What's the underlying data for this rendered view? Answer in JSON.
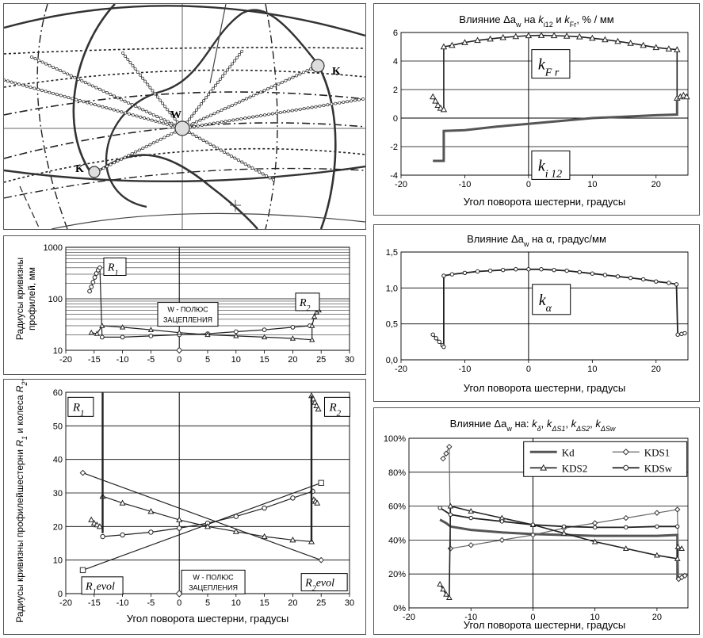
{
  "colors": {
    "line": "#222222",
    "medium": "#555555",
    "marker_fill": "#ffffff",
    "grid": "#000000"
  },
  "diagram": {
    "labels": {
      "pole": "W",
      "contact_left": "K",
      "contact_right": "K"
    }
  },
  "chart_data": [
    {
      "id": "k-fr-ki12",
      "type": "line",
      "title": "Влияние Δa",
      "title_sub": "w",
      "title_rest": " на",
      "title_k1": "k",
      "title_k1_sub": "i12",
      "title_and": "и",
      "title_k2": "k",
      "title_k2_sub": "Fr",
      "title_unit": ",  % / мм",
      "xlabel": "Угол поворота шестерни, градусы",
      "xlim": [
        -20,
        25
      ],
      "ylim": [
        -4,
        6
      ],
      "xticks": [
        -20,
        -10,
        0,
        10,
        20
      ],
      "yticks": [
        -4,
        -2,
        0,
        2,
        4,
        6
      ],
      "boxes": [
        {
          "k": "k",
          "sub": "F r"
        },
        {
          "k": "k",
          "sub": "i 12"
        }
      ],
      "series": [
        {
          "marker": "triangle",
          "points": [
            [
              -15,
              1.5
            ],
            [
              -14.6,
              1.2
            ],
            [
              -14.2,
              0.9
            ],
            [
              -13.8,
              0.7
            ],
            [
              -13.3,
              0.6
            ],
            [
              -13.3,
              5
            ],
            [
              -12,
              5.1
            ],
            [
              -10,
              5.3
            ],
            [
              -8,
              5.45
            ],
            [
              -6,
              5.55
            ],
            [
              -4,
              5.65
            ],
            [
              -2,
              5.72
            ],
            [
              0,
              5.78
            ],
            [
              2,
              5.8
            ],
            [
              4,
              5.78
            ],
            [
              6,
              5.75
            ],
            [
              8,
              5.7
            ],
            [
              10,
              5.6
            ],
            [
              12,
              5.5
            ],
            [
              14,
              5.38
            ],
            [
              16,
              5.25
            ],
            [
              18,
              5.1
            ],
            [
              20,
              4.95
            ],
            [
              22,
              4.85
            ],
            [
              23.3,
              4.8
            ],
            [
              23.3,
              1.4
            ],
            [
              23.8,
              1.5
            ],
            [
              24.3,
              1.6
            ],
            [
              24.8,
              1.5
            ]
          ]
        },
        {
          "marker": "none",
          "points": [
            [
              -15,
              -3
            ],
            [
              -14,
              -3
            ],
            [
              -13.3,
              -3
            ],
            [
              -13.3,
              -0.9
            ],
            [
              -10,
              -0.85
            ],
            [
              -5,
              -0.6
            ],
            [
              0,
              -0.4
            ],
            [
              5,
              -0.2
            ],
            [
              10,
              0
            ],
            [
              15,
              0.1
            ],
            [
              20,
              0.2
            ],
            [
              23.3,
              0.25
            ],
            [
              23.3,
              1.3
            ]
          ]
        }
      ]
    },
    {
      "id": "radii-log",
      "type": "scatter",
      "ylabel_lines": [
        "Радиусы кривизны",
        "профилей, мм"
      ],
      "log_y": true,
      "xlim": [
        -20,
        30
      ],
      "ylim": [
        10,
        1000
      ],
      "xticks": [
        -20,
        -15,
        -10,
        -5,
        0,
        5,
        10,
        15,
        20,
        25,
        30
      ],
      "yticks": [
        10,
        100,
        1000
      ],
      "labels": {
        "r1": "R",
        "r1_sub": "1",
        "r2": "R",
        "r2_sub": "2",
        "pole_line1": "W - ПОЛЮС",
        "pole_line2": "ЗАЦЕПЛЕНИЯ"
      },
      "series": [
        {
          "marker": "circle",
          "points": [
            [
              -15.8,
              140
            ],
            [
              -15.5,
              170
            ],
            [
              -15.2,
              210
            ],
            [
              -14.9,
              260
            ],
            [
              -14.6,
              310
            ],
            [
              -14.3,
              360
            ],
            [
              -14,
              400
            ],
            [
              -13.6,
              18
            ],
            [
              -10,
              18
            ],
            [
              -5,
              19
            ],
            [
              0,
              20
            ],
            [
              5,
              21
            ],
            [
              10,
              23
            ],
            [
              15,
              25
            ],
            [
              20,
              28
            ],
            [
              23,
              30
            ]
          ]
        },
        {
          "marker": "triangle",
          "points": [
            [
              -15.5,
              22
            ],
            [
              -14.5,
              21
            ],
            [
              -13.6,
              30
            ],
            [
              -10,
              28
            ],
            [
              -5,
              25
            ],
            [
              0,
              22
            ],
            [
              5,
              20
            ],
            [
              10,
              19
            ],
            [
              15,
              18
            ],
            [
              20,
              17
            ],
            [
              23.4,
              16
            ],
            [
              23.4,
              30
            ],
            [
              23.8,
              45
            ],
            [
              24.2,
              55
            ],
            [
              24.6,
              60
            ]
          ]
        }
      ],
      "pole_point": [
        0,
        10
      ]
    },
    {
      "id": "radii-linear",
      "type": "scatter",
      "ylabel_line1": "Радиусы кривизны профилей",
      "ylabel_line2_a": "шестерни",
      "ylabel_r1": "R",
      "ylabel_r1_sub": "1",
      "ylabel_mid": "и колеса",
      "ylabel_r2": "R",
      "ylabel_r2_sub": "2",
      "ylabel_end": ", мм",
      "xlabel": "Угол поворота шестерни, градусы",
      "xlim": [
        -20,
        30
      ],
      "ylim": [
        0,
        60
      ],
      "xticks": [
        -20,
        -15,
        -10,
        -5,
        0,
        5,
        10,
        15,
        20,
        25,
        30
      ],
      "yticks": [
        0,
        10,
        20,
        30,
        40,
        50,
        60
      ],
      "labels": {
        "r1": "R",
        "r1_sub": "1",
        "r2": "R",
        "r2_sub": "2",
        "r1evol": "R",
        "r1evol_sub": "1",
        "r1evol_rest": "evol",
        "r2evol": "R",
        "r2evol_sub": "2",
        "r2evol_rest": "evol",
        "pole_line1": "W - ПОЛЮС",
        "pole_line2": "ЗАЦЕПЛЕНИЯ"
      },
      "series": [
        {
          "marker": "diamond",
          "points": [
            [
              -17,
              36
            ],
            [
              25,
              10
            ]
          ]
        },
        {
          "marker": "square",
          "points": [
            [
              -17,
              7
            ],
            [
              25,
              33
            ]
          ]
        },
        {
          "marker": "circle",
          "points": [
            [
              -13.5,
              17
            ],
            [
              -10,
              17.5
            ],
            [
              -5,
              18.3
            ],
            [
              0,
              19.5
            ],
            [
              5,
              21
            ],
            [
              10,
              23
            ],
            [
              15,
              25.5
            ],
            [
              20,
              28.5
            ],
            [
              23.5,
              30.5
            ]
          ]
        },
        {
          "marker": "triangle",
          "points": [
            [
              -13.5,
              29
            ],
            [
              -10,
              27
            ],
            [
              -5,
              24.5
            ],
            [
              0,
              22
            ],
            [
              5,
              20
            ],
            [
              10,
              18.5
            ],
            [
              15,
              17
            ],
            [
              20,
              16
            ],
            [
              23.3,
              15.5
            ]
          ]
        },
        {
          "marker": "triangle",
          "points": [
            [
              -15.5,
              22
            ],
            [
              -15,
              21
            ],
            [
              -14.5,
              20.5
            ],
            [
              -14,
              20
            ]
          ]
        },
        {
          "marker": "triangle",
          "points": [
            [
              23.7,
              28
            ],
            [
              24,
              27.5
            ],
            [
              24.3,
              27
            ]
          ]
        },
        {
          "marker": "triangle",
          "points": [
            [
              23.3,
              59
            ],
            [
              23.6,
              58
            ],
            [
              23.9,
              57
            ],
            [
              24.2,
              56
            ],
            [
              24.5,
              55
            ]
          ]
        },
        {
          "marker": "none",
          "points": [
            [
              -13.5,
              60
            ],
            [
              -13.5,
              18
            ]
          ]
        },
        {
          "marker": "none",
          "points": [
            [
              23.3,
              15.5
            ],
            [
              23.3,
              59
            ]
          ]
        }
      ],
      "pole_point": [
        0,
        0
      ]
    },
    {
      "id": "k-alpha",
      "type": "line",
      "title": "Влияние  Δa",
      "title_sub": "w",
      "title_rest": "  на α, градус/мм",
      "xlabel": "Угол поворота шестерни, градусы",
      "xlim": [
        -20,
        25
      ],
      "ylim": [
        0,
        1.5
      ],
      "xticks": [
        -20,
        -10,
        0,
        10,
        20
      ],
      "yticks": [
        0.0,
        0.5,
        1.0,
        1.5
      ],
      "yticklabels": [
        "0,0",
        "0,5",
        "1,0",
        "1,5"
      ],
      "box": {
        "k": "k",
        "sub": "α"
      },
      "series": [
        {
          "marker": "circle",
          "points": [
            [
              -15,
              0.35
            ],
            [
              -14.5,
              0.3
            ],
            [
              -14,
              0.25
            ],
            [
              -13.5,
              0.2
            ],
            [
              -13.3,
              0.18
            ],
            [
              -13.3,
              1.17
            ],
            [
              -12,
              1.19
            ],
            [
              -10,
              1.21
            ],
            [
              -8,
              1.23
            ],
            [
              -6,
              1.24
            ],
            [
              -4,
              1.25
            ],
            [
              -2,
              1.26
            ],
            [
              0,
              1.26
            ],
            [
              2,
              1.26
            ],
            [
              4,
              1.25
            ],
            [
              6,
              1.24
            ],
            [
              8,
              1.22
            ],
            [
              10,
              1.2
            ],
            [
              12,
              1.18
            ],
            [
              14,
              1.16
            ],
            [
              16,
              1.14
            ],
            [
              18,
              1.12
            ],
            [
              20,
              1.09
            ],
            [
              22,
              1.07
            ],
            [
              23.2,
              1.05
            ],
            [
              23.4,
              0.35
            ],
            [
              24,
              0.36
            ],
            [
              24.5,
              0.37
            ]
          ]
        }
      ]
    },
    {
      "id": "k-share",
      "type": "line",
      "title_a": "Влияние Δa",
      "title_sub": "w",
      "title_b": " на:",
      "title_terms": [
        {
          "k": "k",
          "sub": "δ"
        },
        {
          "k": "k",
          "sub": "ΔS1"
        },
        {
          "k": "k",
          "sub": "ΔS2"
        },
        {
          "k": "k",
          "sub": "ΔSw"
        }
      ],
      "xlabel": "Угол поворота шестерни, градусы",
      "xlim": [
        -20,
        25
      ],
      "ylim": [
        0,
        100
      ],
      "xticks": [
        -20,
        -10,
        0,
        10,
        20
      ],
      "yticks": [
        0,
        20,
        40,
        60,
        80,
        100
      ],
      "yticklabels": [
        "0%",
        "20%",
        "40%",
        "60%",
        "80%",
        "100%"
      ],
      "legend_position": "top-right",
      "series": [
        {
          "name": "Kd",
          "marker": "none",
          "points": [
            [
              -15,
              52
            ],
            [
              -14,
              50
            ],
            [
              -13.3,
              48
            ],
            [
              -10,
              46
            ],
            [
              -5,
              44.5
            ],
            [
              0,
              43.5
            ],
            [
              5,
              43
            ],
            [
              10,
              42.5
            ],
            [
              15,
              42.5
            ],
            [
              20,
              42.5
            ],
            [
              23.3,
              43
            ],
            [
              23.3,
              17
            ]
          ]
        },
        {
          "name": "KDS1",
          "marker": "diamond",
          "points": [
            [
              -14.5,
              88
            ],
            [
              -14,
              91
            ],
            [
              -13.5,
              95
            ],
            [
              -13.3,
              35
            ],
            [
              -10,
              37
            ],
            [
              -5,
              40
            ],
            [
              0,
              43
            ],
            [
              5,
              47
            ],
            [
              10,
              50
            ],
            [
              15,
              53
            ],
            [
              20,
              56
            ],
            [
              23.3,
              58
            ],
            [
              23.5,
              17
            ],
            [
              24,
              18
            ],
            [
              24.5,
              19
            ]
          ]
        },
        {
          "name": "KDS2",
          "marker": "triangle",
          "points": [
            [
              -15,
              14
            ],
            [
              -14.5,
              11
            ],
            [
              -14,
              8
            ],
            [
              -13.5,
              6
            ],
            [
              -13.3,
              60
            ],
            [
              -10,
              57
            ],
            [
              -5,
              53
            ],
            [
              0,
              49
            ],
            [
              5,
              44
            ],
            [
              10,
              39
            ],
            [
              15,
              35
            ],
            [
              20,
              31
            ],
            [
              23.3,
              29
            ],
            [
              23.4,
              36
            ],
            [
              24,
              35
            ]
          ]
        },
        {
          "name": "KDSw",
          "marker": "circle",
          "points": [
            [
              -15,
              59
            ],
            [
              -13.3,
              55
            ],
            [
              -10,
              53
            ],
            [
              -5,
              51
            ],
            [
              0,
              49
            ],
            [
              5,
              48
            ],
            [
              10,
              47.5
            ],
            [
              15,
              47.5
            ],
            [
              20,
              48
            ],
            [
              23.3,
              48
            ]
          ]
        }
      ]
    }
  ]
}
